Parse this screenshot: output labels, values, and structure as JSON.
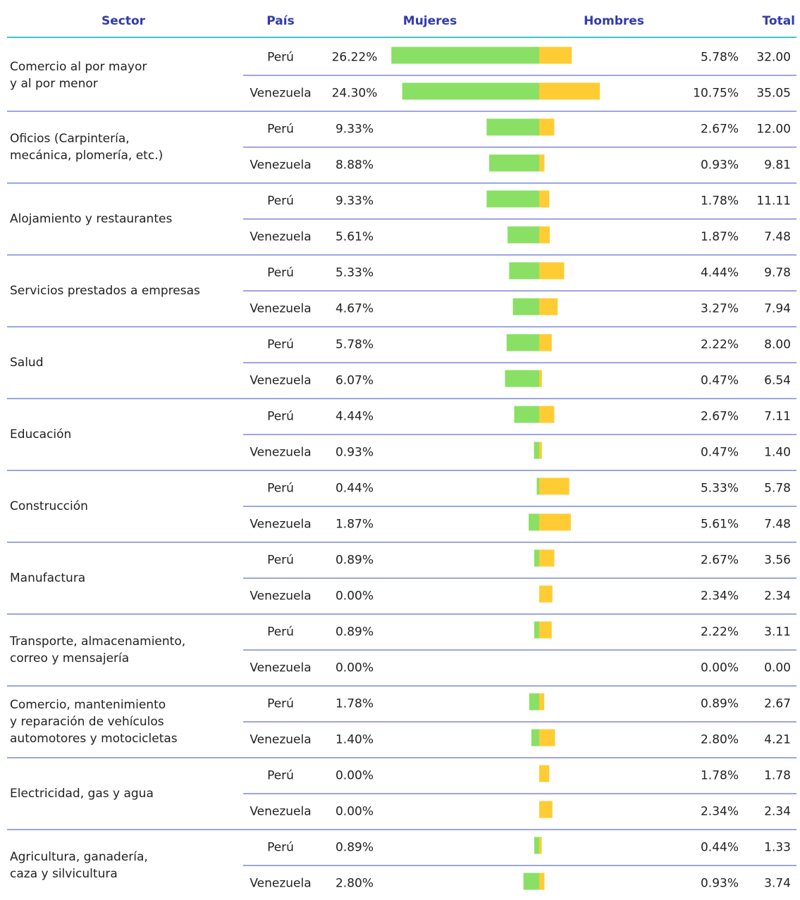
{
  "chart_data": {
    "type": "bar",
    "headers": {
      "sector": "Sector",
      "country": "País",
      "women": "Mujeres",
      "men": "Hombres",
      "total": "Total"
    },
    "sectors": [
      [
        "Comercio al por mayor",
        "y al por menor"
      ],
      [
        "Oficios (Carpintería,",
        "mecánica, plomería, etc.)"
      ],
      [
        "Alojamiento y restaurantes"
      ],
      [
        "Servicios prestados a empresas"
      ],
      [
        "Salud"
      ],
      [
        "Educación"
      ],
      [
        "Construcción"
      ],
      [
        "Manufactura"
      ],
      [
        "Transporte, almacenamiento,",
        "correo y mensajería"
      ],
      [
        "Comercio, mantenimiento",
        "y reparación de vehículos",
        "automotores y motocicletas"
      ],
      [
        "Electricidad, gas y agua"
      ],
      [
        "Agricultura, ganadería,",
        "caza y silvicultura"
      ]
    ],
    "categories": [
      "Perú",
      "Venezuela",
      "Perú",
      "Venezuela",
      "Perú",
      "Venezuela",
      "Perú",
      "Venezuela",
      "Perú",
      "Venezuela",
      "Perú",
      "Venezuela",
      "Perú",
      "Venezuela",
      "Perú",
      "Venezuela",
      "Perú",
      "Venezuela",
      "Perú",
      "Venezuela",
      "Perú",
      "Venezuela",
      "Perú",
      "Venezuela"
    ],
    "series": [
      {
        "name": "Mujeres",
        "color": "#8ae064",
        "values": [
          26.22,
          24.3,
          9.33,
          8.88,
          9.33,
          5.61,
          5.33,
          4.67,
          5.78,
          6.07,
          4.44,
          0.93,
          0.44,
          1.87,
          0.89,
          0.0,
          0.89,
          0.0,
          1.78,
          1.4,
          0.0,
          0.0,
          0.89,
          2.8
        ],
        "value_labels": [
          "26.22%",
          "24.30%",
          "9.33%",
          "8.88%",
          "9.33%",
          "5.61%",
          "5.33%",
          "4.67%",
          "5.78%",
          "6.07%",
          "4.44%",
          "0.93%",
          "0.44%",
          "1.87%",
          "0.89%",
          "0.00%",
          "0.89%",
          "0.00%",
          "1.78%",
          "1.40%",
          "0.00%",
          "0.00%",
          "0.89%",
          "2.80%"
        ]
      },
      {
        "name": "Hombres",
        "color": "#ffcc33",
        "values": [
          5.78,
          10.75,
          2.67,
          0.93,
          1.78,
          1.87,
          4.44,
          3.27,
          2.22,
          0.47,
          2.67,
          0.47,
          5.33,
          5.61,
          2.67,
          2.34,
          2.22,
          0.0,
          0.89,
          2.8,
          1.78,
          2.34,
          0.44,
          0.93
        ],
        "value_labels": [
          "5.78%",
          "10.75%",
          "2.67%",
          "0.93%",
          "1.78%",
          "1.87%",
          "4.44%",
          "3.27%",
          "2.22%",
          "0.47%",
          "2.67%",
          "0.47%",
          "5.33%",
          "5.61%",
          "2.67%",
          "2.34%",
          "2.22%",
          "0.00%",
          "0.89%",
          "2.80%",
          "1.78%",
          "2.34%",
          "0.44%",
          "0.93%"
        ]
      }
    ],
    "totals": [
      "32.00",
      "35.05",
      "12.00",
      "9.81",
      "11.11",
      "7.48",
      "9.78",
      "7.94",
      "8.00",
      "6.54",
      "7.11",
      "1.40",
      "5.78",
      "7.48",
      "3.56",
      "2.34",
      "3.11",
      "0.00",
      "2.67",
      "4.21",
      "1.78",
      "2.34",
      "1.33",
      "3.74"
    ]
  }
}
